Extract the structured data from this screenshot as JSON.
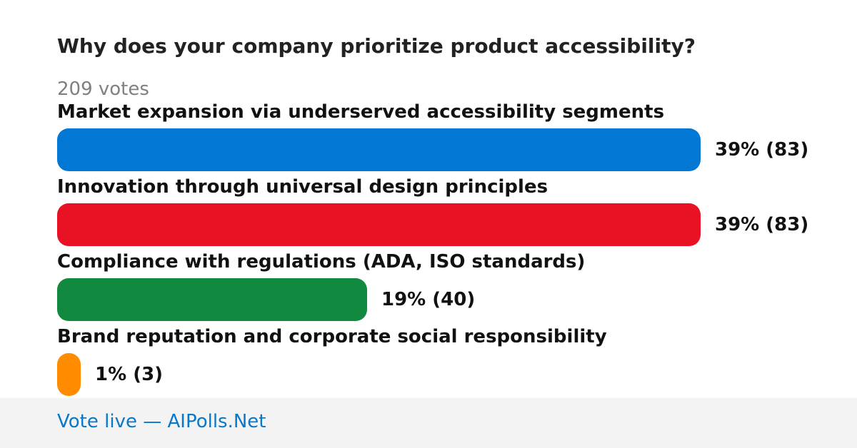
{
  "poll": {
    "title": "Why does your company prioritize product accessibility?",
    "votes_label": "209 votes"
  },
  "chart_data": {
    "type": "bar",
    "orientation": "horizontal",
    "total_votes": 209,
    "categories": [
      "Market expansion via underserved accessibility segments",
      "Innovation through universal design principles",
      "Compliance with regulations (ADA, ISO standards)",
      "Brand reputation and corporate social responsibility"
    ],
    "values": [
      83,
      83,
      40,
      3
    ],
    "percents": [
      39,
      39,
      19,
      1
    ],
    "value_labels": [
      "39% (83)",
      "39% (83)",
      "19% (40)",
      "1% (3)"
    ],
    "colors": [
      "#0277d4",
      "#e81224",
      "#11893f",
      "#ff8c00"
    ]
  },
  "footer": {
    "link_text": "Vote live — AIPolls.Net"
  }
}
